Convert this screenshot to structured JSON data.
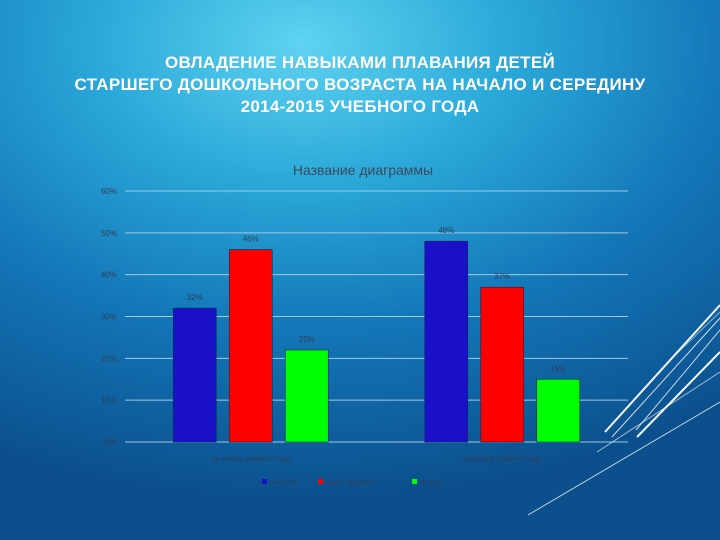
{
  "slide": {
    "title_lines": [
      "Овладение навыками плавания детей",
      "старшего дошкольного возраста на начало и середину",
      "2014-2015 учебного года"
    ]
  },
  "chart_data": {
    "type": "bar",
    "title": "Название диаграммы",
    "categories": [
      "на начало учебного года",
      "середина учебного года"
    ],
    "series": [
      {
        "name": "высокий",
        "values": [
          32,
          48
        ],
        "color": "#1a10c8"
      },
      {
        "name": "выше среднего",
        "values": [
          46,
          37
        ],
        "color": "#ff0000"
      },
      {
        "name": "низкий",
        "values": [
          22,
          15
        ],
        "color": "#00ff00"
      }
    ],
    "ylim": [
      0,
      60
    ],
    "yticks": [
      "0%",
      "10%",
      "20%",
      "30%",
      "40%",
      "50%",
      "60%"
    ],
    "value_suffix": "%",
    "grid": true,
    "legend": "bottom"
  }
}
